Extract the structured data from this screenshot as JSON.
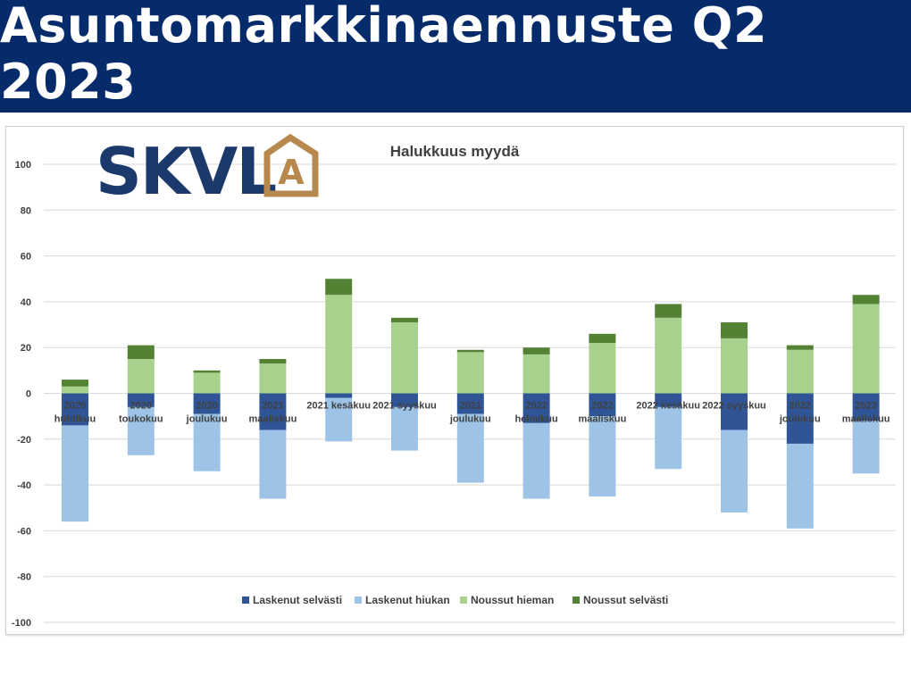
{
  "header": {
    "title": "Asuntomarkkinaennuste Q2 2023"
  },
  "logo": {
    "text": "SKVL",
    "mark": "A",
    "color_text": "#1b3a6b",
    "color_mark": "#b8894f"
  },
  "chart_data": {
    "type": "bar",
    "stacked": true,
    "title": "Halukkuus myydä",
    "xlabel": "",
    "ylabel": "",
    "ylim": [
      -100,
      100
    ],
    "yticks": [
      -100,
      -80,
      -60,
      -40,
      -20,
      0,
      20,
      40,
      60,
      80,
      100
    ],
    "grid": true,
    "legend_position": "bottom",
    "categories": [
      [
        "2020",
        "huhtikuu"
      ],
      [
        "2020",
        "toukokuu"
      ],
      [
        "2020",
        "joulukuu"
      ],
      [
        "2021",
        "maaliskuu"
      ],
      [
        "2021 kesäkuu"
      ],
      [
        "2021 syyskuu"
      ],
      [
        "2021",
        "joulukuu"
      ],
      [
        "2022",
        "helmikuu"
      ],
      [
        "2022",
        "maaliskuu"
      ],
      [
        "2022 kesäkuu"
      ],
      [
        "2022 syyskuu"
      ],
      [
        "2022",
        "joulukuu"
      ],
      [
        "2023",
        "maaliskuu"
      ]
    ],
    "series": [
      {
        "name": "Laskenut selvästi",
        "color": "#2f5597",
        "values": [
          -14,
          -6,
          -9,
          -16,
          -2,
          -6,
          -9,
          -13,
          -10,
          -6,
          -16,
          -22,
          -12
        ]
      },
      {
        "name": "Laskenut hiukan",
        "color": "#9dc3e6",
        "values": [
          -42,
          -21,
          -25,
          -30,
          -19,
          -19,
          -30,
          -33,
          -35,
          -27,
          -36,
          -37,
          -23
        ]
      },
      {
        "name": "Noussut hieman",
        "color": "#a9d18e",
        "values": [
          3,
          15,
          9,
          13,
          43,
          31,
          18,
          17,
          22,
          33,
          24,
          19,
          39
        ]
      },
      {
        "name": "Noussut selvästi",
        "color": "#548235",
        "values": [
          3,
          6,
          1,
          2,
          7,
          2,
          1,
          3,
          4,
          6,
          7,
          2,
          4
        ]
      }
    ]
  }
}
